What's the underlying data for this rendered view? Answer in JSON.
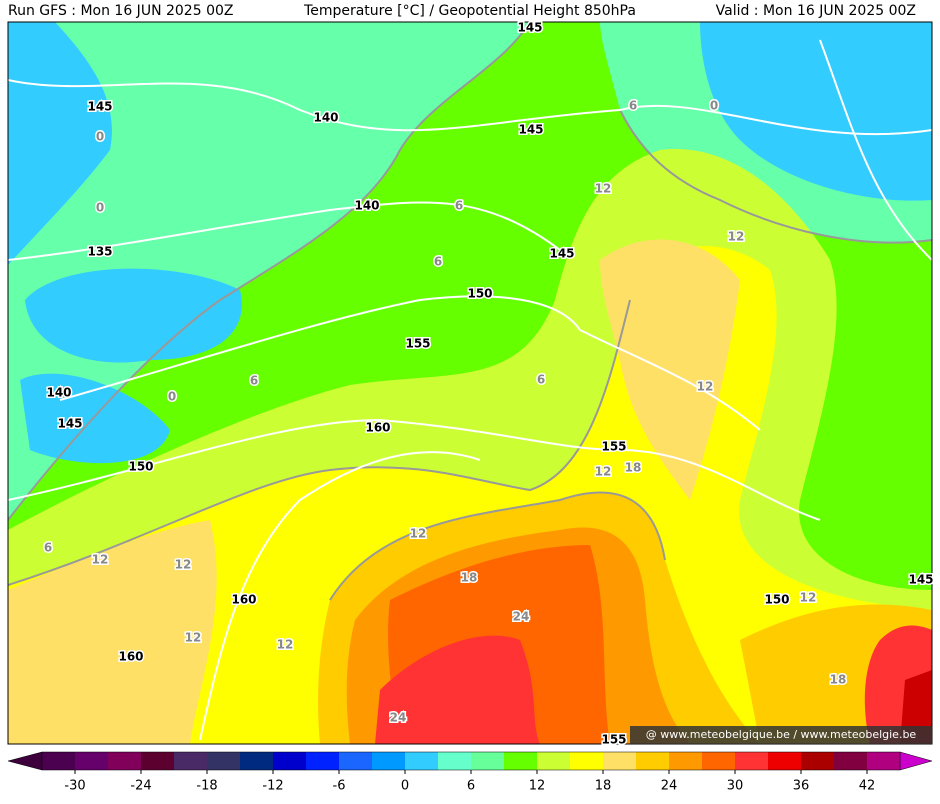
{
  "header": {
    "left": "Run GFS : Mon 16 JUN 2025 00Z",
    "center": "Temperature [°C] / Geopotential Height 850hPa",
    "right": "Valid : Mon 16 JUN 2025 00Z"
  },
  "map": {
    "height_labels": [
      145,
      145,
      140,
      145,
      140,
      135,
      145,
      150,
      155,
      140,
      145,
      160,
      155,
      150,
      145,
      160,
      150,
      160,
      155
    ],
    "temperature_labels": [
      0,
      6,
      0,
      0,
      6,
      12,
      6,
      12,
      6,
      6,
      0,
      12,
      12,
      18,
      6,
      12,
      12,
      12,
      18,
      12,
      24,
      12,
      12,
      18,
      24
    ],
    "watermark": "@ www.meteobelgique.be / www.meteobelgie.be"
  },
  "colorbar": {
    "range": [
      -33,
      45
    ],
    "colors": [
      "#4b0050",
      "#66006b",
      "#80005a",
      "#5c0030",
      "#4a2a66",
      "#333366",
      "#002a80",
      "#0000cc",
      "#0022ff",
      "#1a66ff",
      "#0099ff",
      "#33ccff",
      "#66ffcc",
      "#66ff99",
      "#66ff00",
      "#ccff33",
      "#ffff00",
      "#ffe066",
      "#ffcc00",
      "#ff9900",
      "#ff6600",
      "#ff3333",
      "#ee0000",
      "#aa0000",
      "#800040",
      "#b00080"
    ],
    "low_color": "#3d003d",
    "high_color": "#cc00cc",
    "ticks": [
      -30,
      -24,
      -18,
      -12,
      -6,
      0,
      6,
      12,
      18,
      24,
      30,
      36,
      42
    ]
  }
}
